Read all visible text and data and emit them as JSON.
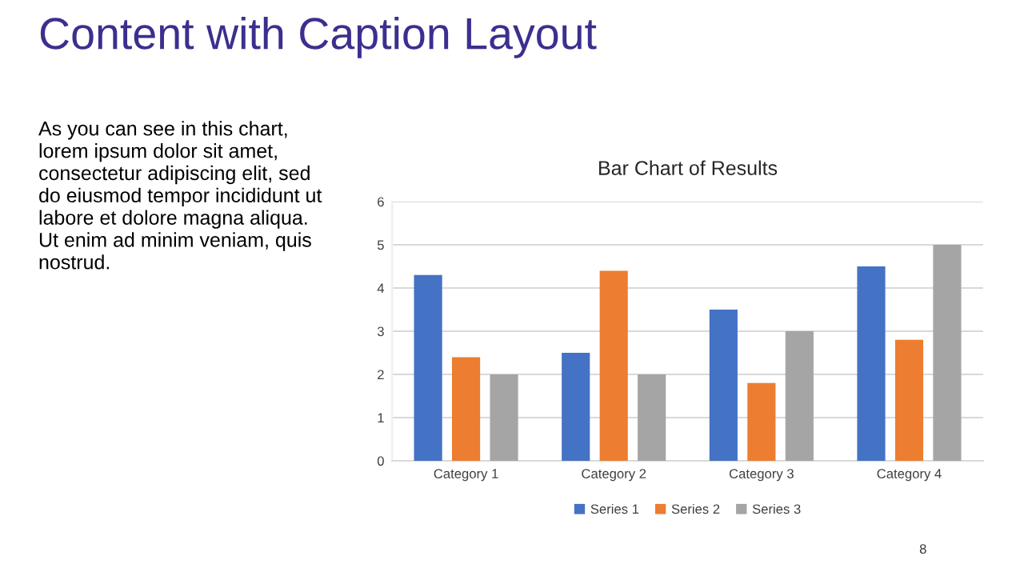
{
  "chart_data": {
    "type": "bar",
    "title": "Bar Chart of Results",
    "categories": [
      "Category 1",
      "Category 2",
      "Category 3",
      "Category 4"
    ],
    "series": [
      {
        "name": "Series 1",
        "color": "#4472c4",
        "values": [
          4.3,
          2.5,
          3.5,
          4.5
        ]
      },
      {
        "name": "Series 2",
        "color": "#ed7d31",
        "values": [
          2.4,
          4.4,
          1.8,
          2.8
        ]
      },
      {
        "name": "Series 3",
        "color": "#a5a5a5",
        "values": [
          2,
          2,
          3,
          5
        ]
      }
    ],
    "ylim": [
      0,
      6
    ],
    "yticks": [
      0,
      1,
      2,
      3,
      4,
      5,
      6
    ],
    "grid": "y",
    "legend": "bottom",
    "annotations": [
      "Content with Caption Layout",
      "As you can see in this chart,\nlorem ipsum dolor sit amet,\nconsectetur adipiscing elit, sed\ndo eiusmod tempor incididunt ut\nlabore et dolore magna aliqua.\nUt enim ad minim veniam, quis\nnostrud.",
      "8"
    ]
  }
}
